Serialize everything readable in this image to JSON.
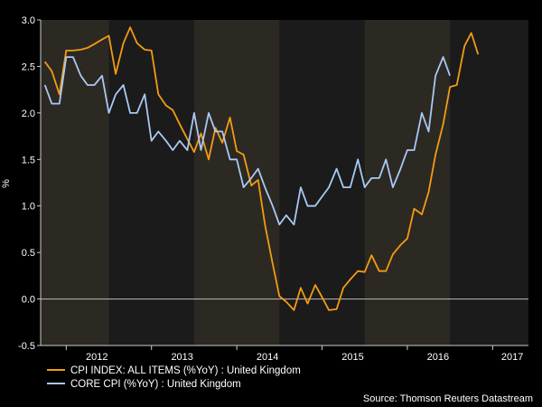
{
  "chart_data": {
    "type": "line",
    "ylabel": "%",
    "ylim": [
      -0.5,
      3.0
    ],
    "yticks": [
      "3.0",
      "2.5",
      "2.0",
      "1.5",
      "1.0",
      "0.5",
      "0.0",
      "-0.5"
    ],
    "ytick_values": [
      3.0,
      2.5,
      2.0,
      1.5,
      1.0,
      0.5,
      0.0,
      -0.5
    ],
    "xlim": [
      2011.7,
      2017.42
    ],
    "xticks": [
      "2012",
      "2013",
      "2014",
      "2015",
      "2016",
      "2017"
    ],
    "xtick_values": [
      2012.0,
      2013.0,
      2014.0,
      2015.0,
      2016.0,
      2017.0
    ],
    "zero_line": 0,
    "shaded_periods": [
      [
        2011.7,
        2012.5
      ],
      [
        2013.5,
        2014.5
      ],
      [
        2015.5,
        2016.5
      ]
    ],
    "series": [
      {
        "name": "CPI INDEX: ALL ITEMS (%YoY) : United Kingdom",
        "color": "#F39C12",
        "x": [
          2011.75,
          2011.83,
          2011.92,
          2012.0,
          2012.08,
          2012.17,
          2012.25,
          2012.33,
          2012.42,
          2012.5,
          2012.58,
          2012.67,
          2012.75,
          2012.83,
          2012.92,
          2013.0,
          2013.08,
          2013.17,
          2013.25,
          2013.33,
          2013.42,
          2013.5,
          2013.58,
          2013.67,
          2013.75,
          2013.83,
          2013.92,
          2014.0,
          2014.08,
          2014.17,
          2014.25,
          2014.33,
          2014.42,
          2014.5,
          2014.58,
          2014.67,
          2014.75,
          2014.83,
          2014.92,
          2015.0,
          2015.08,
          2015.17,
          2015.25,
          2015.33,
          2015.42,
          2015.5,
          2015.58,
          2015.67,
          2015.75,
          2015.83,
          2015.92,
          2016.0,
          2016.08,
          2016.17,
          2016.25,
          2016.33,
          2016.42,
          2016.5,
          2016.58,
          2016.67,
          2016.75,
          2016.83,
          2016.92,
          2017.0,
          2017.08,
          2017.17,
          2017.25,
          2017.33
        ],
        "values": [
          2.55,
          2.45,
          2.2,
          2.67,
          2.67,
          2.68,
          2.7,
          2.74,
          2.79,
          2.83,
          2.42,
          2.75,
          2.92,
          2.75,
          2.68,
          2.67,
          2.2,
          2.08,
          2.03,
          1.88,
          1.72,
          1.58,
          1.78,
          1.5,
          1.84,
          1.68,
          1.95,
          1.59,
          1.55,
          1.22,
          1.28,
          0.8,
          0.38,
          0.03,
          -0.03,
          -0.12,
          0.12,
          -0.05,
          0.15,
          0.02,
          -0.12,
          -0.11,
          0.12,
          0.21,
          0.3,
          0.29,
          0.47,
          0.3,
          0.3,
          0.48,
          0.58,
          0.65,
          0.97,
          0.91,
          1.15,
          1.55,
          1.88,
          2.28,
          2.3,
          2.72,
          2.86,
          2.63,
          null,
          null,
          null,
          null,
          null,
          null
        ]
      },
      {
        "name": "CORE CPI (%YoY) : United Kingdom",
        "color": "#A9C9F5",
        "x": [
          2011.75,
          2011.83,
          2011.92,
          2012.0,
          2012.08,
          2012.17,
          2012.25,
          2012.33,
          2012.42,
          2012.5,
          2012.58,
          2012.67,
          2012.75,
          2012.83,
          2012.92,
          2013.0,
          2013.08,
          2013.17,
          2013.25,
          2013.33,
          2013.42,
          2013.5,
          2013.58,
          2013.67,
          2013.75,
          2013.83,
          2013.92,
          2014.0,
          2014.08,
          2014.17,
          2014.25,
          2014.33,
          2014.42,
          2014.5,
          2014.58,
          2014.67,
          2014.75,
          2014.83,
          2014.92,
          2015.0,
          2015.08,
          2015.17,
          2015.25,
          2015.33,
          2015.42,
          2015.5,
          2015.58,
          2015.67,
          2015.75,
          2015.83,
          2015.92,
          2016.0,
          2016.08,
          2016.17,
          2016.25,
          2016.33,
          2016.42,
          2016.5,
          2016.58,
          2016.67,
          2016.75,
          2016.83,
          2016.92,
          2017.0,
          2017.08,
          2017.17,
          2017.25,
          2017.33
        ],
        "values": [
          2.3,
          2.1,
          2.1,
          2.6,
          2.6,
          2.4,
          2.3,
          2.3,
          2.4,
          2.0,
          2.2,
          2.3,
          2.0,
          2.0,
          2.2,
          1.7,
          1.8,
          1.7,
          1.6,
          1.7,
          1.6,
          2.0,
          1.6,
          2.0,
          1.8,
          1.8,
          1.5,
          1.5,
          1.2,
          1.3,
          1.4,
          1.2,
          1.0,
          0.8,
          0.9,
          0.8,
          1.2,
          1.0,
          1.0,
          1.1,
          1.2,
          1.4,
          1.2,
          1.2,
          1.5,
          1.2,
          1.3,
          1.3,
          1.5,
          1.2,
          1.4,
          1.6,
          1.6,
          2.0,
          1.8,
          2.4,
          2.6,
          2.4,
          null,
          null,
          null,
          null,
          null,
          null,
          null,
          null,
          null,
          null
        ]
      }
    ],
    "source": "Source: Thomson Reuters Datastream"
  }
}
